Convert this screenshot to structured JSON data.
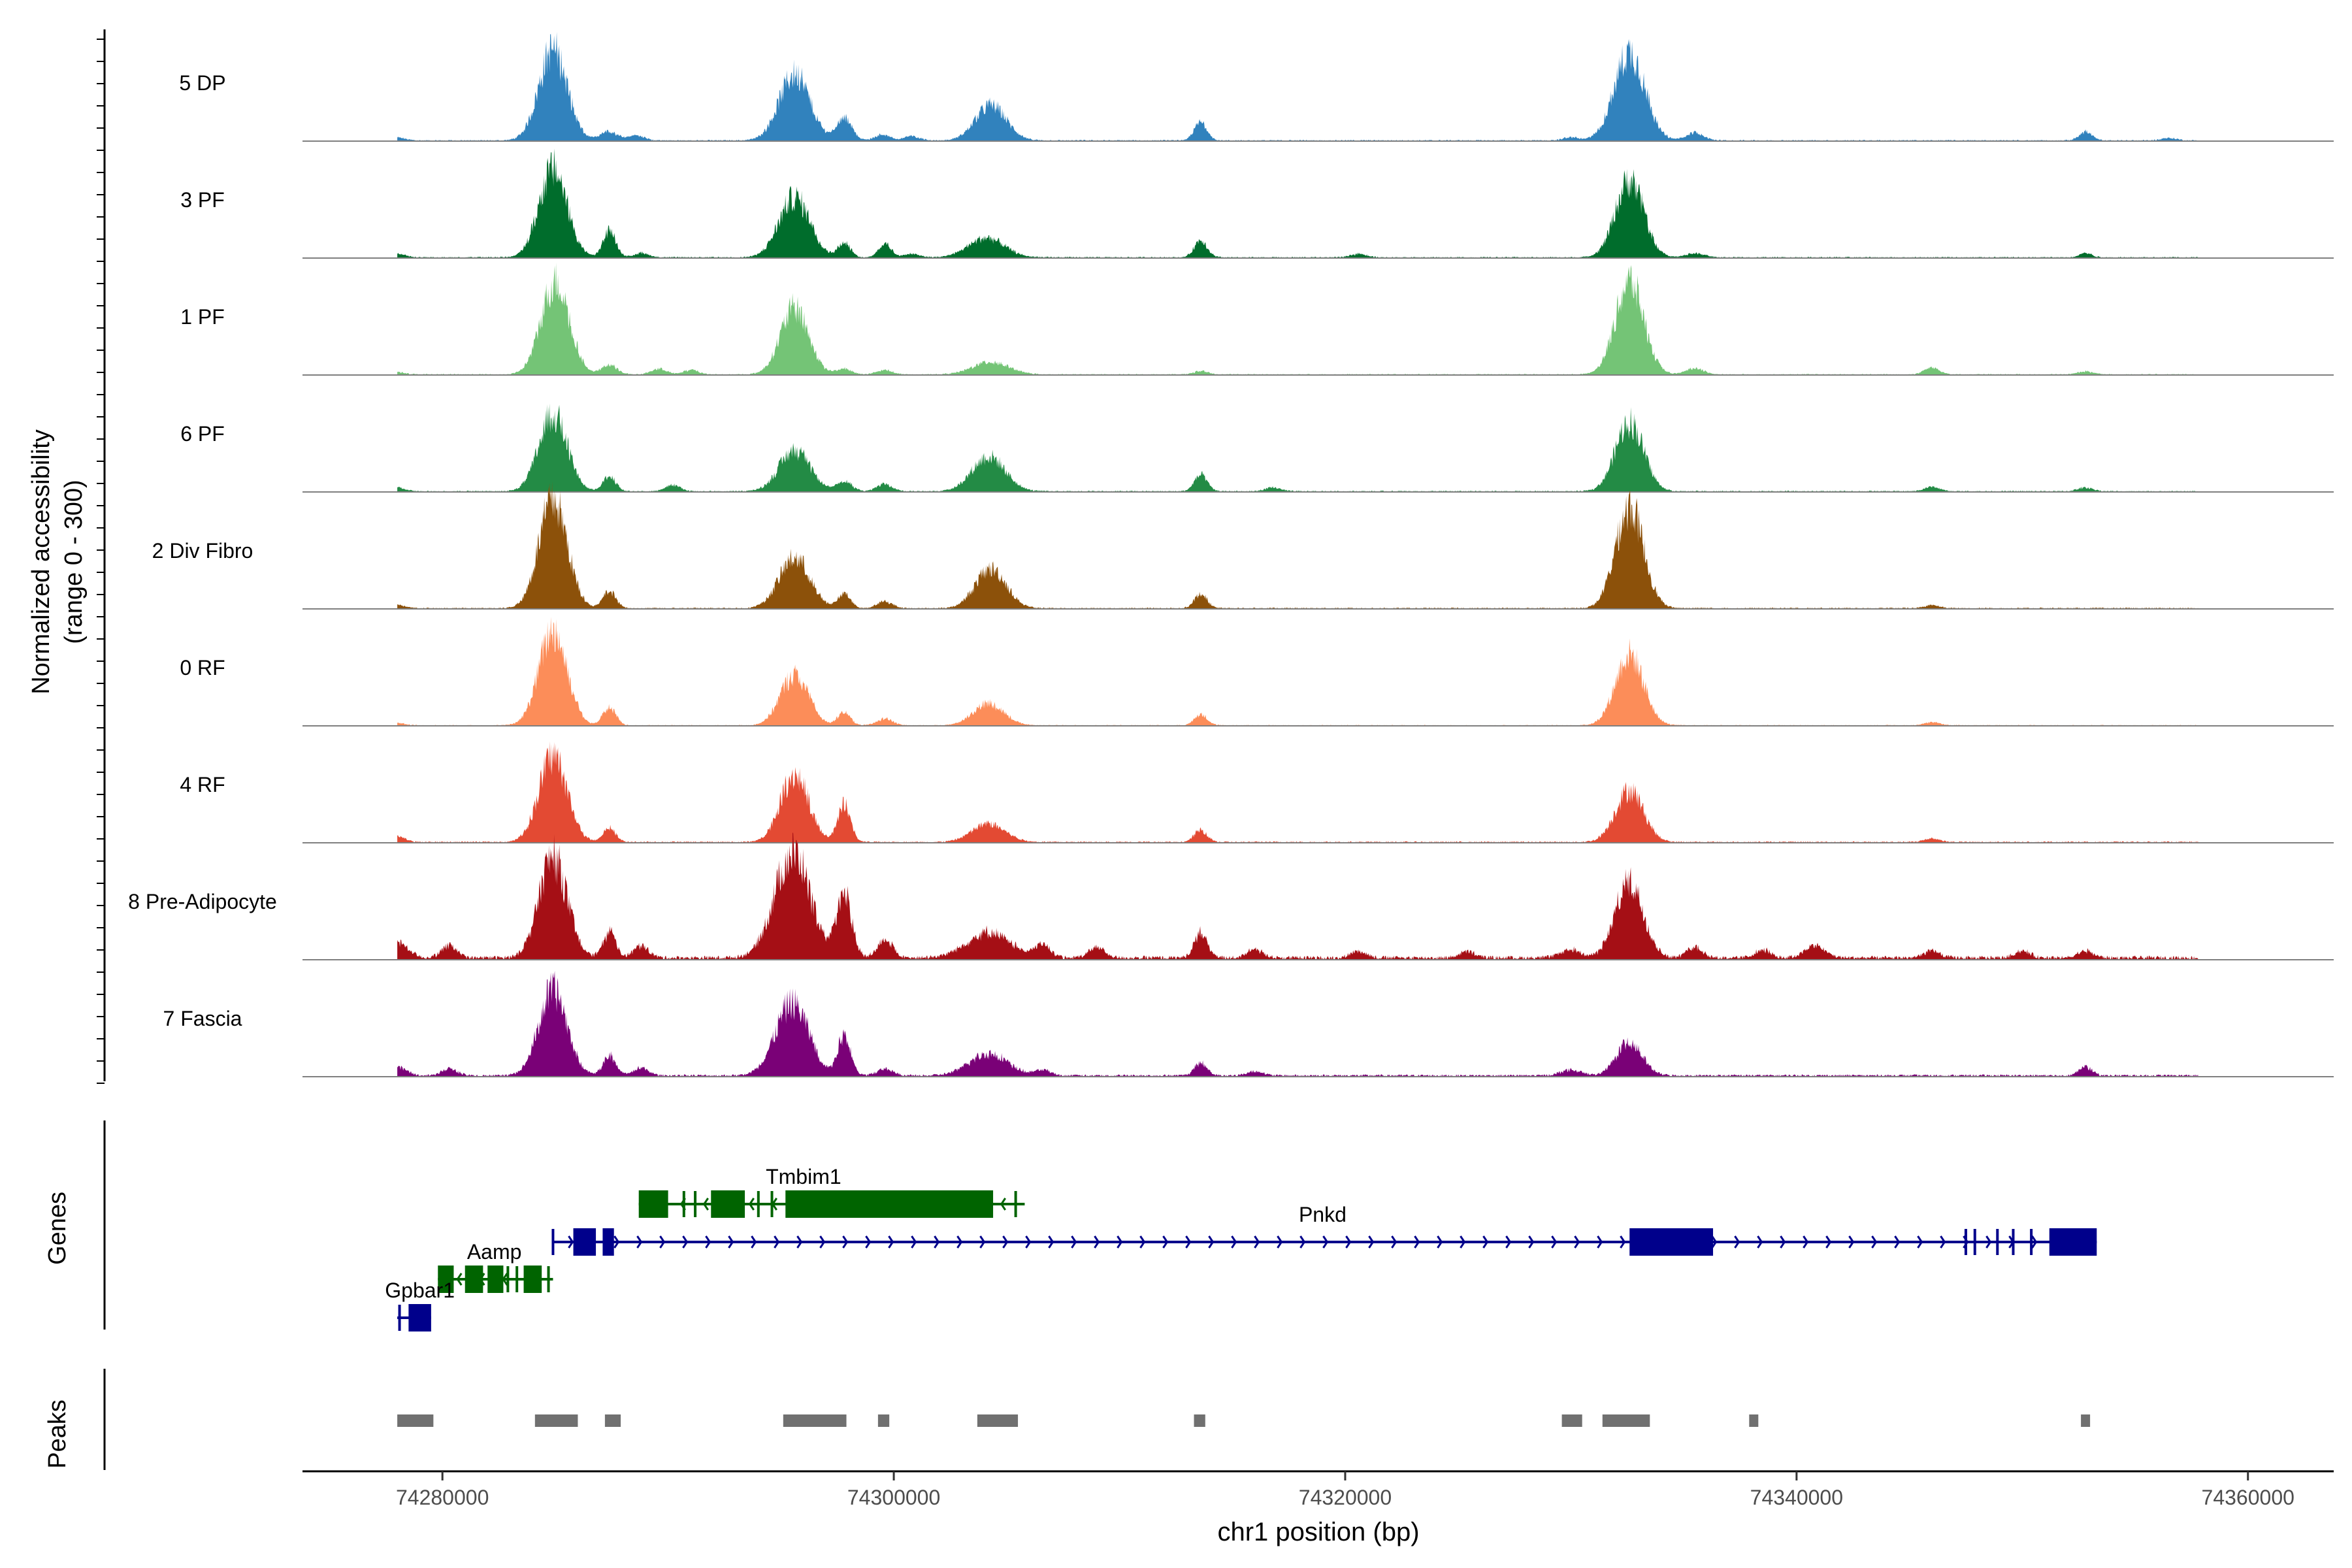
{
  "chart_data": {
    "type": "area",
    "title": "",
    "ylabel_line1": "Normalized accessibility",
    "ylabel_line2": "(range 0 - 300)",
    "xlabel": "chr1 position (bp)",
    "xlim": [
      74273800,
      74363800
    ],
    "ylim": [
      0,
      300
    ],
    "x_ticks": [
      74280000,
      74300000,
      74320000,
      74340000,
      74360000
    ],
    "x_tick_labels": [
      "74280000",
      "74300000",
      "74320000",
      "74340000",
      "74360000"
    ],
    "tracks": [
      {
        "name": "5 DP",
        "color": "#3182bd",
        "peaks": [
          [
            74278000,
            9,
            1.2
          ],
          [
            74284900,
            290,
            2.2
          ],
          [
            74287400,
            28,
            1.4
          ],
          [
            74288600,
            16,
            1.2
          ],
          [
            74295600,
            210,
            2.4
          ],
          [
            74297800,
            72,
            1.2
          ],
          [
            74299500,
            18,
            1.2
          ],
          [
            74300800,
            14,
            1.2
          ],
          [
            74304300,
            112,
            2.4
          ],
          [
            74313600,
            58,
            1.0
          ],
          [
            74330000,
            10,
            1.2
          ],
          [
            74332600,
            280,
            2.4
          ],
          [
            74335500,
            24,
            1.4
          ],
          [
            74352800,
            28,
            1.0
          ],
          [
            74356500,
            8,
            1.2
          ]
        ],
        "noise": 4.0
      },
      {
        "name": "3 PF",
        "color": "#006d2c",
        "peaks": [
          [
            74278000,
            12,
            1.2
          ],
          [
            74284900,
            280,
            2.2
          ],
          [
            74287400,
            85,
            1.0
          ],
          [
            74288800,
            14,
            1.2
          ],
          [
            74295600,
            190,
            2.4
          ],
          [
            74297800,
            45,
            1.0
          ],
          [
            74299600,
            42,
            1.0
          ],
          [
            74300800,
            12,
            1.2
          ],
          [
            74304100,
            62,
            2.8
          ],
          [
            74313600,
            55,
            1.0
          ],
          [
            74320600,
            12,
            1.2
          ],
          [
            74332600,
            245,
            2.2
          ],
          [
            74335500,
            14,
            1.4
          ],
          [
            74352800,
            14,
            1.0
          ]
        ],
        "noise": 4.0
      },
      {
        "name": "1 PF",
        "color": "#74c476",
        "peaks": [
          [
            74278000,
            8,
            1.2
          ],
          [
            74285000,
            295,
            2.2
          ],
          [
            74287400,
            30,
            1.2
          ],
          [
            74289600,
            18,
            1.2
          ],
          [
            74291000,
            14,
            1.2
          ],
          [
            74295600,
            210,
            2.2
          ],
          [
            74297800,
            18,
            1.2
          ],
          [
            74299600,
            14,
            1.2
          ],
          [
            74304300,
            40,
            2.8
          ],
          [
            74313600,
            10,
            1.2
          ],
          [
            74332600,
            295,
            2.2
          ],
          [
            74335500,
            20,
            1.4
          ],
          [
            74346000,
            22,
            1.2
          ],
          [
            74352800,
            10,
            1.2
          ]
        ],
        "noise": 3.5
      },
      {
        "name": "6 PF",
        "color": "#238b45",
        "peaks": [
          [
            74278000,
            12,
            1.2
          ],
          [
            74284900,
            245,
            2.2
          ],
          [
            74287400,
            48,
            1.0
          ],
          [
            74290200,
            20,
            1.2
          ],
          [
            74295600,
            130,
            2.4
          ],
          [
            74297800,
            32,
            1.2
          ],
          [
            74299600,
            24,
            1.2
          ],
          [
            74304200,
            110,
            2.6
          ],
          [
            74313600,
            52,
            1.0
          ],
          [
            74316800,
            12,
            1.2
          ],
          [
            74332600,
            220,
            2.2
          ],
          [
            74346000,
            14,
            1.2
          ],
          [
            74352800,
            12,
            1.2
          ]
        ],
        "noise": 4.0
      },
      {
        "name": "2 Div Fibro",
        "color": "#8c510a",
        "peaks": [
          [
            74278000,
            10,
            1.2
          ],
          [
            74284900,
            345,
            2.2
          ],
          [
            74287400,
            55,
            1.0
          ],
          [
            74295600,
            160,
            2.4
          ],
          [
            74297800,
            45,
            1.0
          ],
          [
            74299600,
            22,
            1.2
          ],
          [
            74304300,
            125,
            2.4
          ],
          [
            74313600,
            45,
            1.0
          ],
          [
            74332600,
            320,
            2.2
          ],
          [
            74346000,
            10,
            1.2
          ]
        ],
        "noise": 4.0
      },
      {
        "name": "0 RF",
        "color": "#fc8d59",
        "peaks": [
          [
            74278000,
            8,
            1.2
          ],
          [
            74284900,
            300,
            2.2
          ],
          [
            74287400,
            58,
            1.0
          ],
          [
            74295600,
            160,
            2.2
          ],
          [
            74297800,
            40,
            1.0
          ],
          [
            74299600,
            22,
            1.2
          ],
          [
            74304200,
            70,
            2.4
          ],
          [
            74313600,
            35,
            1.0
          ],
          [
            74332600,
            225,
            2.2
          ],
          [
            74346000,
            10,
            1.2
          ]
        ],
        "noise": 3.0
      },
      {
        "name": "4 RF",
        "color": "#e34a33",
        "peaks": [
          [
            74278000,
            18,
            1.2
          ],
          [
            74284900,
            275,
            2.2
          ],
          [
            74287400,
            45,
            1.0
          ],
          [
            74295600,
            215,
            2.2
          ],
          [
            74297800,
            120,
            1.0
          ],
          [
            74304200,
            58,
            2.6
          ],
          [
            74313600,
            38,
            1.0
          ],
          [
            74332600,
            165,
            2.2
          ],
          [
            74346000,
            12,
            1.2
          ]
        ],
        "noise": 4.5
      },
      {
        "name": "8 Pre-Adipocyte",
        "color": "#a50f15",
        "peaks": [
          [
            74278000,
            50,
            1.6
          ],
          [
            74280300,
            38,
            1.2
          ],
          [
            74284900,
            320,
            2.2
          ],
          [
            74287400,
            80,
            1.0
          ],
          [
            74288800,
            38,
            1.2
          ],
          [
            74295500,
            330,
            2.8
          ],
          [
            74297800,
            195,
            1.2
          ],
          [
            74299600,
            60,
            1.2
          ],
          [
            74304200,
            80,
            3.4
          ],
          [
            74306600,
            40,
            1.2
          ],
          [
            74309000,
            35,
            1.2
          ],
          [
            74313600,
            80,
            1.0
          ],
          [
            74316000,
            28,
            1.2
          ],
          [
            74320600,
            22,
            1.2
          ],
          [
            74325400,
            20,
            1.2
          ],
          [
            74330000,
            26,
            1.6
          ],
          [
            74332600,
            240,
            2.2
          ],
          [
            74335500,
            35,
            1.2
          ],
          [
            74338500,
            25,
            1.2
          ],
          [
            74340800,
            38,
            1.6
          ],
          [
            74346000,
            22,
            1.2
          ],
          [
            74350000,
            22,
            1.2
          ],
          [
            74352800,
            22,
            1.2
          ]
        ],
        "noise": 12.0
      },
      {
        "name": "7 Fascia",
        "color": "#7a0177",
        "peaks": [
          [
            74278000,
            28,
            1.4
          ],
          [
            74280300,
            22,
            1.2
          ],
          [
            74284900,
            270,
            2.2
          ],
          [
            74287400,
            65,
            1.0
          ],
          [
            74288800,
            24,
            1.2
          ],
          [
            74295500,
            230,
            2.6
          ],
          [
            74297800,
            125,
            1.0
          ],
          [
            74299600,
            22,
            1.2
          ],
          [
            74304200,
            70,
            3.0
          ],
          [
            74306600,
            18,
            1.2
          ],
          [
            74313600,
            40,
            1.0
          ],
          [
            74316000,
            14,
            1.2
          ],
          [
            74330000,
            18,
            1.6
          ],
          [
            74332600,
            105,
            2.0
          ],
          [
            74352800,
            28,
            1.0
          ]
        ],
        "noise": 7.0
      }
    ],
    "genes_label": "Genes",
    "peaks_label": "Peaks",
    "genes": [
      {
        "name": "Tmbim1",
        "color": "#006400",
        "strand": "-",
        "start": 74288700,
        "end": 74305800,
        "row": 0,
        "label_x": 74296000,
        "exons": [
          [
            74288700,
            74290000
          ],
          [
            74291900,
            74293400
          ],
          [
            74295200,
            74304400
          ]
        ],
        "markers": [
          74290700,
          74291200,
          74294000,
          74294600,
          74305400
        ]
      },
      {
        "name": "Pnkd",
        "color": "#00008b",
        "strand": "+",
        "start": 74284900,
        "end": 74353300,
        "row": 1,
        "label_x": 74319000,
        "exons": [
          [
            74285800,
            74286800
          ],
          [
            74287100,
            74287600
          ],
          [
            74332600,
            74336300
          ],
          [
            74351200,
            74353300
          ]
        ],
        "markers": [
          74284900,
          74347500,
          74347900,
          74348900,
          74349600,
          74350400
        ]
      },
      {
        "name": "Aamp",
        "color": "#006400",
        "strand": "-",
        "start": 74279800,
        "end": 74284900,
        "row": 2,
        "label_x": 74282300,
        "exons": [
          [
            74279800,
            74280500
          ],
          [
            74281000,
            74281800
          ],
          [
            74282000,
            74282700
          ],
          [
            74283600,
            74284400
          ]
        ],
        "markers": [
          74282900,
          74283300,
          74284700
        ]
      },
      {
        "name": "Gpbar1",
        "color": "#00008b",
        "strand": "+",
        "start": 74278000,
        "end": 74279500,
        "row": 3,
        "label_x": 74279000,
        "exons": [
          [
            74278500,
            74279500
          ]
        ],
        "markers": [
          74278100
        ]
      }
    ],
    "peak_regions": [
      [
        74278000,
        74279600
      ],
      [
        74284100,
        74286000
      ],
      [
        74287200,
        74287900
      ],
      [
        74295100,
        74297900
      ],
      [
        74299300,
        74299800
      ],
      [
        74303700,
        74305500
      ],
      [
        74313300,
        74313800
      ],
      [
        74329600,
        74330500
      ],
      [
        74331400,
        74333500
      ],
      [
        74337900,
        74338200
      ],
      [
        74352600,
        74353000
      ]
    ]
  }
}
